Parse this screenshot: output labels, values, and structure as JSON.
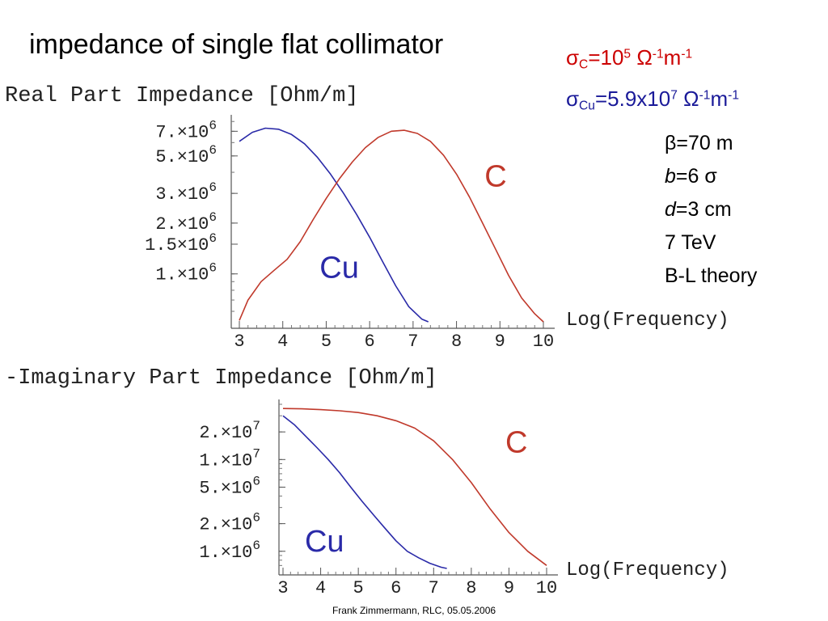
{
  "slide": {
    "title": "impedance of single flat collimator",
    "footer": "Frank Zimmermann, RLC, 05.05.2006"
  },
  "conductivity": {
    "c": {
      "symbol": "σ",
      "sub": "C",
      "text": "=10",
      "exp": "5",
      "unit_symbol": "Ω",
      "unit_exp": "-1",
      "unit_m": "m",
      "unit_m_exp": "-1",
      "color": "#cc0000"
    },
    "cu": {
      "symbol": "σ",
      "sub": "Cu",
      "text": "=5.9x10",
      "exp": "7",
      "unit_symbol": "Ω",
      "unit_exp": "-1",
      "unit_m": "m",
      "unit_m_exp": "-1",
      "color": "#1a1a99"
    }
  },
  "parameters": {
    "beta": {
      "symbol": "β",
      "value": "=70 m"
    },
    "b": {
      "symbol": "b",
      "value": "=6 σ"
    },
    "d": {
      "symbol": "d",
      "value": "=3 cm"
    },
    "energy": "7 TeV",
    "theory": "B-L theory"
  },
  "colors": {
    "C": "#c0392b",
    "Cu": "#2a2aa8"
  },
  "chart_data": [
    {
      "type": "line",
      "title": "Real Part Impedance [Ohm/m]",
      "xlabel": "Log(Frequency)",
      "ylabel": "",
      "xlim": [
        3,
        10
      ],
      "y_scale": "log",
      "ylim": [
        520000,
        8200000
      ],
      "x_ticks": [
        "3",
        "4",
        "5",
        "6",
        "7",
        "8",
        "9",
        "10"
      ],
      "y_ticks": [
        {
          "value": 7000000,
          "mantissa": "7.",
          "exp": "6"
        },
        {
          "value": 5000000,
          "mantissa": "5.",
          "exp": "6"
        },
        {
          "value": 3000000,
          "mantissa": "3.",
          "exp": "6"
        },
        {
          "value": 2000000,
          "mantissa": "2.",
          "exp": "6"
        },
        {
          "value": 1500000,
          "mantissa": "1.5",
          "exp": "6"
        },
        {
          "value": 1000000,
          "mantissa": "1.",
          "exp": "6"
        }
      ],
      "series": [
        {
          "name": "Cu",
          "label_at": [
            5.3,
            950000
          ],
          "x": [
            3.0,
            3.3,
            3.6,
            3.9,
            4.2,
            4.5,
            4.8,
            5.1,
            5.4,
            5.7,
            6.0,
            6.3,
            6.6,
            6.9,
            7.2,
            7.35
          ],
          "y": [
            6100000,
            6900000,
            7300000,
            7200000,
            6700000,
            5900000,
            4900000,
            3900000,
            3000000,
            2250000,
            1650000,
            1180000,
            850000,
            640000,
            540000,
            520000
          ]
        },
        {
          "name": "C",
          "label_at": [
            8.9,
            3300000
          ],
          "x": [
            3.0,
            3.2,
            3.5,
            3.8,
            4.1,
            4.4,
            4.7,
            5.0,
            5.3,
            5.6,
            5.9,
            6.2,
            6.5,
            6.8,
            7.1,
            7.4,
            7.7,
            8.0,
            8.3,
            8.6,
            8.9,
            9.2,
            9.5,
            9.8,
            10.0
          ],
          "y": [
            530000,
            700000,
            900000,
            1050000,
            1220000,
            1550000,
            2100000,
            2800000,
            3650000,
            4600000,
            5600000,
            6450000,
            7000000,
            7100000,
            6800000,
            6100000,
            5050000,
            3900000,
            2850000,
            2000000,
            1400000,
            980000,
            720000,
            580000,
            520000
          ]
        }
      ]
    },
    {
      "type": "line",
      "title": "-Imaginary Part Impedance [Ohm/m]",
      "xlabel": "Log(Frequency)",
      "ylabel": "",
      "xlim": [
        3,
        10
      ],
      "y_scale": "log",
      "ylim": [
        650000,
        40000000
      ],
      "x_ticks": [
        "3",
        "4",
        "5",
        "6",
        "7",
        "8",
        "9",
        "10"
      ],
      "y_ticks": [
        {
          "value": 20000000,
          "mantissa": "2.",
          "exp": "7"
        },
        {
          "value": 10000000,
          "mantissa": "1.",
          "exp": "7"
        },
        {
          "value": 5000000,
          "mantissa": "5.",
          "exp": "6"
        },
        {
          "value": 2000000,
          "mantissa": "2.",
          "exp": "6"
        },
        {
          "value": 1000000,
          "mantissa": "1.",
          "exp": "6"
        }
      ],
      "series": [
        {
          "name": "Cu",
          "label_at": [
            4.1,
            1000000
          ],
          "x": [
            3.0,
            3.3,
            3.6,
            3.9,
            4.2,
            4.5,
            4.8,
            5.1,
            5.4,
            5.7,
            6.0,
            6.3,
            6.6,
            6.9,
            7.2,
            7.35
          ],
          "y": [
            30000000,
            24000000,
            18000000,
            13500000,
            10000000,
            7200000,
            5000000,
            3500000,
            2500000,
            1800000,
            1300000,
            1000000,
            850000,
            740000,
            670000,
            650000
          ]
        },
        {
          "name": "C",
          "label_at": [
            9.2,
            12000000
          ],
          "x": [
            3.0,
            3.5,
            4.0,
            4.5,
            5.0,
            5.5,
            6.0,
            6.5,
            7.0,
            7.5,
            8.0,
            8.5,
            9.0,
            9.5,
            10.0
          ],
          "y": [
            36000000,
            35700000,
            35000000,
            34000000,
            32500000,
            30000000,
            26500000,
            22000000,
            16000000,
            10000000,
            5600000,
            2900000,
            1600000,
            1000000,
            700000
          ]
        }
      ]
    }
  ]
}
